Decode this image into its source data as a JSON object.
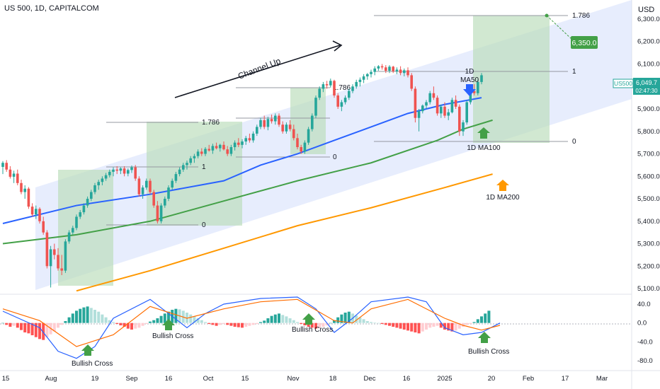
{
  "chart_data": {
    "type": "candlestick",
    "title": "US 500, 1D, CAPITALCOM",
    "currency": "USD",
    "ticker": "US500",
    "last_price": "6,049.7",
    "countdown": "02:47:30",
    "y_ticks": [
      "6,300.0",
      "6,200.0",
      "6,100.0",
      "6,000.0",
      "5,900.0",
      "5,800.0",
      "5,700.0",
      "5,600.0",
      "5,500.0",
      "5,400.0",
      "5,300.0",
      "5,200.0",
      "5,100.0"
    ],
    "ylim": [
      5075,
      6385
    ],
    "x_ticks": [
      "15",
      "Aug",
      "19",
      "Sep",
      "16",
      "Oct",
      "15",
      "Nov",
      "18",
      "Dec",
      "16",
      "2025",
      "20",
      "Feb",
      "17",
      "Mar"
    ],
    "candles": [
      {
        "o": 5642,
        "h": 5668,
        "l": 5610,
        "c": 5660
      },
      {
        "o": 5660,
        "h": 5672,
        "l": 5620,
        "c": 5630
      },
      {
        "o": 5630,
        "h": 5645,
        "l": 5590,
        "c": 5598
      },
      {
        "o": 5598,
        "h": 5625,
        "l": 5570,
        "c": 5612
      },
      {
        "o": 5612,
        "h": 5630,
        "l": 5560,
        "c": 5570
      },
      {
        "o": 5570,
        "h": 5585,
        "l": 5520,
        "c": 5530
      },
      {
        "o": 5530,
        "h": 5560,
        "l": 5500,
        "c": 5545
      },
      {
        "o": 5545,
        "h": 5552,
        "l": 5455,
        "c": 5465
      },
      {
        "o": 5465,
        "h": 5480,
        "l": 5420,
        "c": 5430
      },
      {
        "o": 5430,
        "h": 5470,
        "l": 5410,
        "c": 5455
      },
      {
        "o": 5455,
        "h": 5462,
        "l": 5390,
        "c": 5400
      },
      {
        "o": 5400,
        "h": 5420,
        "l": 5340,
        "c": 5350
      },
      {
        "o": 5350,
        "h": 5360,
        "l": 5190,
        "c": 5200
      },
      {
        "o": 5200,
        "h": 5290,
        "l": 5105,
        "c": 5275
      },
      {
        "o": 5275,
        "h": 5300,
        "l": 5230,
        "c": 5250
      },
      {
        "o": 5250,
        "h": 5280,
        "l": 5180,
        "c": 5190
      },
      {
        "o": 5190,
        "h": 5250,
        "l": 5160,
        "c": 5180
      },
      {
        "o": 5180,
        "h": 5320,
        "l": 5170,
        "c": 5310
      },
      {
        "o": 5310,
        "h": 5360,
        "l": 5300,
        "c": 5350
      },
      {
        "o": 5350,
        "h": 5380,
        "l": 5340,
        "c": 5370
      },
      {
        "o": 5370,
        "h": 5430,
        "l": 5360,
        "c": 5420
      },
      {
        "o": 5420,
        "h": 5450,
        "l": 5410,
        "c": 5440
      },
      {
        "o": 5440,
        "h": 5480,
        "l": 5430,
        "c": 5470
      },
      {
        "o": 5470,
        "h": 5510,
        "l": 5460,
        "c": 5500
      },
      {
        "o": 5500,
        "h": 5540,
        "l": 5490,
        "c": 5530
      },
      {
        "o": 5530,
        "h": 5570,
        "l": 5520,
        "c": 5560
      },
      {
        "o": 5560,
        "h": 5585,
        "l": 5540,
        "c": 5575
      },
      {
        "o": 5575,
        "h": 5600,
        "l": 5560,
        "c": 5590
      },
      {
        "o": 5590,
        "h": 5615,
        "l": 5580,
        "c": 5605
      },
      {
        "o": 5605,
        "h": 5630,
        "l": 5595,
        "c": 5620
      },
      {
        "o": 5620,
        "h": 5640,
        "l": 5600,
        "c": 5630
      },
      {
        "o": 5630,
        "h": 5645,
        "l": 5610,
        "c": 5625
      },
      {
        "o": 5625,
        "h": 5640,
        "l": 5610,
        "c": 5635
      },
      {
        "o": 5635,
        "h": 5645,
        "l": 5600,
        "c": 5612
      },
      {
        "o": 5612,
        "h": 5635,
        "l": 5600,
        "c": 5628
      },
      {
        "o": 5628,
        "h": 5648,
        "l": 5615,
        "c": 5640
      },
      {
        "o": 5640,
        "h": 5650,
        "l": 5580,
        "c": 5590
      },
      {
        "o": 5590,
        "h": 5600,
        "l": 5510,
        "c": 5520
      },
      {
        "o": 5520,
        "h": 5560,
        "l": 5500,
        "c": 5550
      },
      {
        "o": 5550,
        "h": 5590,
        "l": 5540,
        "c": 5580
      },
      {
        "o": 5580,
        "h": 5590,
        "l": 5520,
        "c": 5530
      },
      {
        "o": 5530,
        "h": 5540,
        "l": 5460,
        "c": 5470
      },
      {
        "o": 5470,
        "h": 5490,
        "l": 5390,
        "c": 5400
      },
      {
        "o": 5400,
        "h": 5480,
        "l": 5390,
        "c": 5470
      },
      {
        "o": 5470,
        "h": 5510,
        "l": 5460,
        "c": 5500
      },
      {
        "o": 5500,
        "h": 5560,
        "l": 5490,
        "c": 5550
      },
      {
        "o": 5550,
        "h": 5590,
        "l": 5540,
        "c": 5580
      },
      {
        "o": 5580,
        "h": 5620,
        "l": 5570,
        "c": 5610
      },
      {
        "o": 5610,
        "h": 5640,
        "l": 5600,
        "c": 5630
      },
      {
        "o": 5630,
        "h": 5660,
        "l": 5620,
        "c": 5650
      },
      {
        "o": 5650,
        "h": 5670,
        "l": 5630,
        "c": 5660
      },
      {
        "o": 5660,
        "h": 5690,
        "l": 5650,
        "c": 5680
      },
      {
        "o": 5680,
        "h": 5700,
        "l": 5660,
        "c": 5690
      },
      {
        "o": 5690,
        "h": 5720,
        "l": 5680,
        "c": 5710
      },
      {
        "o": 5710,
        "h": 5725,
        "l": 5690,
        "c": 5700
      },
      {
        "o": 5700,
        "h": 5730,
        "l": 5690,
        "c": 5722
      },
      {
        "o": 5722,
        "h": 5740,
        "l": 5710,
        "c": 5715
      },
      {
        "o": 5715,
        "h": 5745,
        "l": 5700,
        "c": 5735
      },
      {
        "o": 5735,
        "h": 5750,
        "l": 5720,
        "c": 5725
      },
      {
        "o": 5725,
        "h": 5745,
        "l": 5710,
        "c": 5740
      },
      {
        "o": 5740,
        "h": 5755,
        "l": 5715,
        "c": 5720
      },
      {
        "o": 5720,
        "h": 5735,
        "l": 5690,
        "c": 5700
      },
      {
        "o": 5700,
        "h": 5740,
        "l": 5690,
        "c": 5730
      },
      {
        "o": 5730,
        "h": 5760,
        "l": 5715,
        "c": 5750
      },
      {
        "o": 5750,
        "h": 5770,
        "l": 5730,
        "c": 5740
      },
      {
        "o": 5740,
        "h": 5765,
        "l": 5725,
        "c": 5755
      },
      {
        "o": 5755,
        "h": 5780,
        "l": 5740,
        "c": 5770
      },
      {
        "o": 5770,
        "h": 5790,
        "l": 5750,
        "c": 5760
      },
      {
        "o": 5760,
        "h": 5800,
        "l": 5750,
        "c": 5790
      },
      {
        "o": 5790,
        "h": 5830,
        "l": 5780,
        "c": 5820
      },
      {
        "o": 5820,
        "h": 5860,
        "l": 5810,
        "c": 5850
      },
      {
        "o": 5850,
        "h": 5870,
        "l": 5810,
        "c": 5820
      },
      {
        "o": 5820,
        "h": 5865,
        "l": 5805,
        "c": 5855
      },
      {
        "o": 5855,
        "h": 5875,
        "l": 5835,
        "c": 5845
      },
      {
        "o": 5845,
        "h": 5880,
        "l": 5830,
        "c": 5870
      },
      {
        "o": 5870,
        "h": 5880,
        "l": 5820,
        "c": 5830
      },
      {
        "o": 5830,
        "h": 5845,
        "l": 5790,
        "c": 5800
      },
      {
        "o": 5800,
        "h": 5840,
        "l": 5790,
        "c": 5830
      },
      {
        "o": 5830,
        "h": 5850,
        "l": 5800,
        "c": 5810
      },
      {
        "o": 5810,
        "h": 5830,
        "l": 5760,
        "c": 5770
      },
      {
        "o": 5770,
        "h": 5790,
        "l": 5720,
        "c": 5730
      },
      {
        "o": 5730,
        "h": 5740,
        "l": 5700,
        "c": 5710
      },
      {
        "o": 5710,
        "h": 5760,
        "l": 5700,
        "c": 5750
      },
      {
        "o": 5750,
        "h": 5820,
        "l": 5740,
        "c": 5810
      },
      {
        "o": 5810,
        "h": 5880,
        "l": 5800,
        "c": 5870
      },
      {
        "o": 5870,
        "h": 5960,
        "l": 5860,
        "c": 5950
      },
      {
        "o": 5950,
        "h": 6000,
        "l": 5940,
        "c": 5990
      },
      {
        "o": 5990,
        "h": 6020,
        "l": 5975,
        "c": 6010
      },
      {
        "o": 6010,
        "h": 6025,
        "l": 5990,
        "c": 6005
      },
      {
        "o": 6005,
        "h": 6035,
        "l": 5995,
        "c": 6025
      },
      {
        "o": 6025,
        "h": 6030,
        "l": 5950,
        "c": 5960
      },
      {
        "o": 5960,
        "h": 5970,
        "l": 5900,
        "c": 5910
      },
      {
        "o": 5910,
        "h": 5940,
        "l": 5890,
        "c": 5930
      },
      {
        "o": 5930,
        "h": 5960,
        "l": 5920,
        "c": 5950
      },
      {
        "o": 5950,
        "h": 5990,
        "l": 5940,
        "c": 5980
      },
      {
        "o": 5980,
        "h": 6010,
        "l": 5970,
        "c": 6000
      },
      {
        "o": 6000,
        "h": 6030,
        "l": 5990,
        "c": 6020
      },
      {
        "o": 6020,
        "h": 6040,
        "l": 6000,
        "c": 6030
      },
      {
        "o": 6030,
        "h": 6055,
        "l": 6015,
        "c": 6045
      },
      {
        "o": 6045,
        "h": 6060,
        "l": 6030,
        "c": 6055
      },
      {
        "o": 6055,
        "h": 6075,
        "l": 6040,
        "c": 6065
      },
      {
        "o": 6065,
        "h": 6090,
        "l": 6050,
        "c": 6080
      },
      {
        "o": 6080,
        "h": 6095,
        "l": 6070,
        "c": 6090
      },
      {
        "o": 6090,
        "h": 6100,
        "l": 6075,
        "c": 6085
      },
      {
        "o": 6085,
        "h": 6095,
        "l": 6060,
        "c": 6070
      },
      {
        "o": 6070,
        "h": 6095,
        "l": 6060,
        "c": 6088
      },
      {
        "o": 6088,
        "h": 6092,
        "l": 6060,
        "c": 6068
      },
      {
        "o": 6068,
        "h": 6085,
        "l": 6055,
        "c": 6075
      },
      {
        "o": 6075,
        "h": 6090,
        "l": 6050,
        "c": 6060
      },
      {
        "o": 6060,
        "h": 6080,
        "l": 6045,
        "c": 6072
      },
      {
        "o": 6072,
        "h": 6085,
        "l": 6040,
        "c": 6050
      },
      {
        "o": 6050,
        "h": 6060,
        "l": 5980,
        "c": 5990
      },
      {
        "o": 5990,
        "h": 6000,
        "l": 5840,
        "c": 5860
      },
      {
        "o": 5860,
        "h": 5900,
        "l": 5800,
        "c": 5890
      },
      {
        "o": 5890,
        "h": 5920,
        "l": 5880,
        "c": 5915
      },
      {
        "o": 5915,
        "h": 5940,
        "l": 5900,
        "c": 5930
      },
      {
        "o": 5930,
        "h": 5980,
        "l": 5920,
        "c": 5970
      },
      {
        "o": 5970,
        "h": 6000,
        "l": 5940,
        "c": 5950
      },
      {
        "o": 5950,
        "h": 5960,
        "l": 5870,
        "c": 5880
      },
      {
        "o": 5880,
        "h": 5920,
        "l": 5860,
        "c": 5910
      },
      {
        "o": 5910,
        "h": 5930,
        "l": 5860,
        "c": 5870
      },
      {
        "o": 5870,
        "h": 5900,
        "l": 5850,
        "c": 5885
      },
      {
        "o": 5885,
        "h": 5950,
        "l": 5880,
        "c": 5940
      },
      {
        "o": 5940,
        "h": 5960,
        "l": 5900,
        "c": 5910
      },
      {
        "o": 5910,
        "h": 5920,
        "l": 5780,
        "c": 5800
      },
      {
        "o": 5800,
        "h": 5850,
        "l": 5780,
        "c": 5840
      },
      {
        "o": 5840,
        "h": 5940,
        "l": 5830,
        "c": 5930
      },
      {
        "o": 5930,
        "h": 5990,
        "l": 5920,
        "c": 5980
      },
      {
        "o": 5980,
        "h": 6010,
        "l": 5960,
        "c": 5970
      },
      {
        "o": 5970,
        "h": 6030,
        "l": 5960,
        "c": 6020
      },
      {
        "o": 6020,
        "h": 6060,
        "l": 6010,
        "c": 6050
      }
    ],
    "moving_averages": [
      {
        "name": "1D MA50",
        "color": "#2962ff",
        "points": [
          [
            0,
            5390
          ],
          [
            20,
            5470
          ],
          [
            40,
            5520
          ],
          [
            60,
            5580
          ],
          [
            70,
            5650
          ],
          [
            80,
            5700
          ],
          [
            90,
            5760
          ],
          [
            100,
            5820
          ],
          [
            110,
            5880
          ],
          [
            120,
            5920
          ],
          [
            130,
            5950
          ]
        ]
      },
      {
        "name": "1D MA100",
        "color": "#43a047",
        "points": [
          [
            0,
            5300
          ],
          [
            20,
            5340
          ],
          [
            40,
            5400
          ],
          [
            60,
            5490
          ],
          [
            80,
            5580
          ],
          [
            100,
            5660
          ],
          [
            118,
            5760
          ],
          [
            125,
            5810
          ],
          [
            133,
            5850
          ]
        ]
      },
      {
        "name": "1D MA200",
        "color": "#ff9800",
        "points": [
          [
            20,
            5090
          ],
          [
            40,
            5180
          ],
          [
            60,
            5280
          ],
          [
            80,
            5380
          ],
          [
            100,
            5460
          ],
          [
            120,
            5550
          ],
          [
            133,
            5610
          ]
        ]
      }
    ],
    "annotations": {
      "channel_label": "Channel Up",
      "ma50_label": "1D\nMA50",
      "ma100_label": "1D MA100",
      "ma200_label": "1D MA200",
      "target": "6,350.0",
      "fib_1786": "1.786",
      "fib_1": "1",
      "fib_0": "0",
      "bullish_cross": "Bullish Cross"
    },
    "macd": {
      "y_ticks": [
        "40.0",
        "0.0",
        "-40.0",
        "-80.0"
      ],
      "ylim": [
        -95,
        55
      ],
      "histogram": [
        0,
        -4,
        -8,
        -6,
        -10,
        -15,
        -20,
        -22,
        -26,
        -30,
        -34,
        -36,
        -30,
        -24,
        -18,
        -10,
        -4,
        4,
        12,
        20,
        26,
        30,
        33,
        35,
        32,
        28,
        24,
        18,
        12,
        6,
        2,
        -2,
        -5,
        -8,
        -12,
        -14,
        -12,
        -10,
        -6,
        -2,
        3,
        6,
        10,
        15,
        20,
        24,
        28,
        30,
        29,
        26,
        22,
        18,
        14,
        10,
        6,
        2,
        -2,
        -4,
        -6,
        -4,
        -2,
        -4,
        -6,
        -8,
        -9,
        -10,
        -8,
        -6,
        -4,
        -2,
        2,
        5,
        10,
        15,
        18,
        20,
        17,
        14,
        10,
        6,
        2,
        -2,
        -5,
        -8,
        -10,
        -12,
        -10,
        -8,
        -5,
        0,
        6,
        12,
        18,
        22,
        24,
        20,
        16,
        12,
        8,
        4,
        2,
        1,
        0,
        -2,
        -4,
        -6,
        -8,
        -10,
        -12,
        -14,
        -16,
        -18,
        -20,
        -22,
        -18,
        -14,
        -10,
        -8,
        -6,
        -10,
        -14,
        -16,
        -18,
        -16,
        -12,
        -8,
        -4,
        -2,
        2,
        8,
        14,
        20,
        26
      ],
      "macd_line": [
        [
          0,
          25
        ],
        [
          10,
          -10
        ],
        [
          15,
          -60
        ],
        [
          20,
          -75
        ],
        [
          25,
          -50
        ],
        [
          30,
          10
        ],
        [
          40,
          50
        ],
        [
          45,
          20
        ],
        [
          50,
          -10
        ],
        [
          55,
          20
        ],
        [
          60,
          40
        ],
        [
          70,
          52
        ],
        [
          80,
          55
        ],
        [
          85,
          30
        ],
        [
          90,
          -20
        ],
        [
          95,
          10
        ],
        [
          100,
          45
        ],
        [
          110,
          55
        ],
        [
          115,
          45
        ],
        [
          120,
          -10
        ],
        [
          125,
          -25
        ],
        [
          130,
          -20
        ],
        [
          135,
          0
        ]
      ],
      "signal_line": [
        [
          0,
          30
        ],
        [
          10,
          5
        ],
        [
          20,
          -50
        ],
        [
          30,
          -25
        ],
        [
          40,
          35
        ],
        [
          50,
          10
        ],
        [
          60,
          30
        ],
        [
          70,
          45
        ],
        [
          80,
          50
        ],
        [
          90,
          5
        ],
        [
          95,
          0
        ],
        [
          100,
          30
        ],
        [
          110,
          50
        ],
        [
          120,
          10
        ],
        [
          125,
          -5
        ],
        [
          130,
          -15
        ],
        [
          135,
          -5
        ]
      ]
    }
  }
}
